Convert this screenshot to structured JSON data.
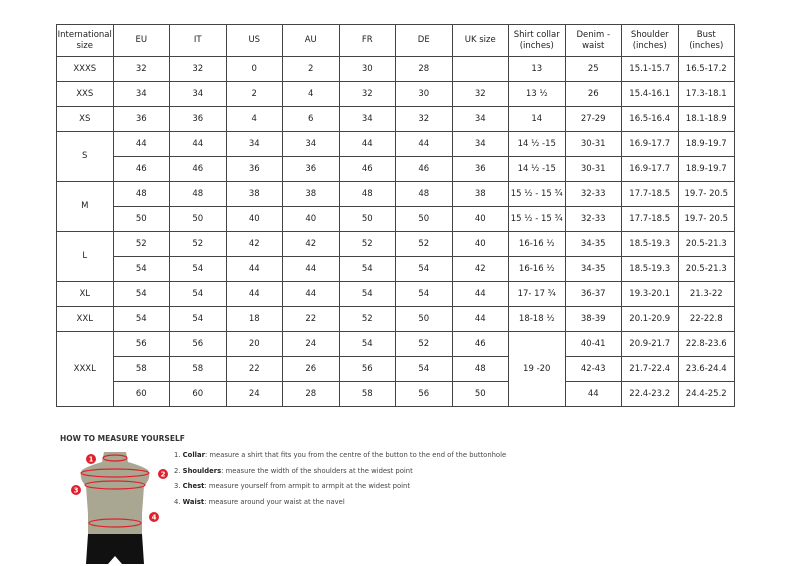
{
  "headers": [
    "International size",
    "EU",
    "IT",
    "US",
    "AU",
    "FR",
    "DE",
    "UK size",
    "Shirt collar (inches)",
    "Denim - waist",
    "Shoulder (inches)",
    "Bust (inches)"
  ],
  "groups": [
    {
      "size": "XXXS",
      "rows": [
        [
          "32",
          "32",
          "0",
          "2",
          "30",
          "28",
          "",
          "13",
          "25",
          "15.1-15.7",
          "16.5-17.2"
        ]
      ]
    },
    {
      "size": "XXS",
      "rows": [
        [
          "34",
          "34",
          "2",
          "4",
          "32",
          "30",
          "32",
          "13 ½",
          "26",
          "15.4-16.1",
          "17.3-18.1"
        ]
      ]
    },
    {
      "size": "XS",
      "rows": [
        [
          "36",
          "36",
          "4",
          "6",
          "34",
          "32",
          "34",
          "14",
          "27-29",
          "16.5-16.4",
          "18.1-18.9"
        ]
      ]
    },
    {
      "size": "S",
      "rows": [
        [
          "44",
          "44",
          "34",
          "34",
          "44",
          "44",
          "34",
          "14 ½ -15",
          "30-31",
          "16.9-17.7",
          "18.9-19.7"
        ],
        [
          "46",
          "46",
          "36",
          "36",
          "46",
          "46",
          "36",
          "14 ½ -15",
          "30-31",
          "16.9-17.7",
          "18.9-19.7"
        ]
      ]
    },
    {
      "size": "M",
      "rows": [
        [
          "48",
          "48",
          "38",
          "38",
          "48",
          "48",
          "38",
          "15 ½ - 15 ¾",
          "32-33",
          "17.7-18.5",
          "19.7- 20.5"
        ],
        [
          "50",
          "50",
          "40",
          "40",
          "50",
          "50",
          "40",
          "15 ½ - 15 ¾",
          "32-33",
          "17.7-18.5",
          "19.7- 20.5"
        ]
      ]
    },
    {
      "size": "L",
      "rows": [
        [
          "52",
          "52",
          "42",
          "42",
          "52",
          "52",
          "40",
          "16-16 ½",
          "34-35",
          "18.5-19.3",
          "20.5-21.3"
        ],
        [
          "54",
          "54",
          "44",
          "44",
          "54",
          "54",
          "42",
          "16-16 ½",
          "34-35",
          "18.5-19.3",
          "20.5-21.3"
        ]
      ]
    },
    {
      "size": "XL",
      "rows": [
        [
          "54",
          "54",
          "44",
          "44",
          "54",
          "54",
          "44",
          "17- 17 ¾",
          "36-37",
          "19.3-20.1",
          "21.3-22"
        ]
      ]
    },
    {
      "size": "XXL",
      "rows": [
        [
          "54",
          "54",
          "18",
          "22",
          "52",
          "50",
          "44",
          "18-18 ½",
          "38-39",
          "20.1-20.9",
          "22-22.8"
        ]
      ]
    },
    {
      "size": "XXXL",
      "rows": [
        [
          "56",
          "56",
          "20",
          "24",
          "54",
          "52",
          "46",
          "19 -20",
          "40-41",
          "20.9-21.7",
          "22.8-23.6"
        ],
        [
          "58",
          "58",
          "22",
          "26",
          "56",
          "54",
          "48",
          null,
          "42-43",
          "21.7-22.4",
          "23.6-24.4"
        ],
        [
          "60",
          "60",
          "24",
          "28",
          "58",
          "56",
          "50",
          null,
          "44",
          "22.4-23.2",
          "24.4-25.2"
        ]
      ]
    }
  ],
  "guide": {
    "title": "HOW TO MEASURE YOURSELF",
    "steps": [
      {
        "num": "1.",
        "label": "Collar",
        "text": ": measure a shirt that fits you from the centre of the button to the end of the buttonhole"
      },
      {
        "num": "2.",
        "label": "Shoulders",
        "text": ": measure the width of the shoulders at the widest point"
      },
      {
        "num": "3.",
        "label": "Chest",
        "text": ": measure yourself from armpit to armpit at the widest point"
      },
      {
        "num": "4.",
        "label": "Waist",
        "text": ": measure around your waist at the navel"
      }
    ],
    "markers": [
      "1",
      "2",
      "3",
      "4"
    ],
    "marker_color": "#e0202c",
    "torso_color": "#a9a792"
  }
}
